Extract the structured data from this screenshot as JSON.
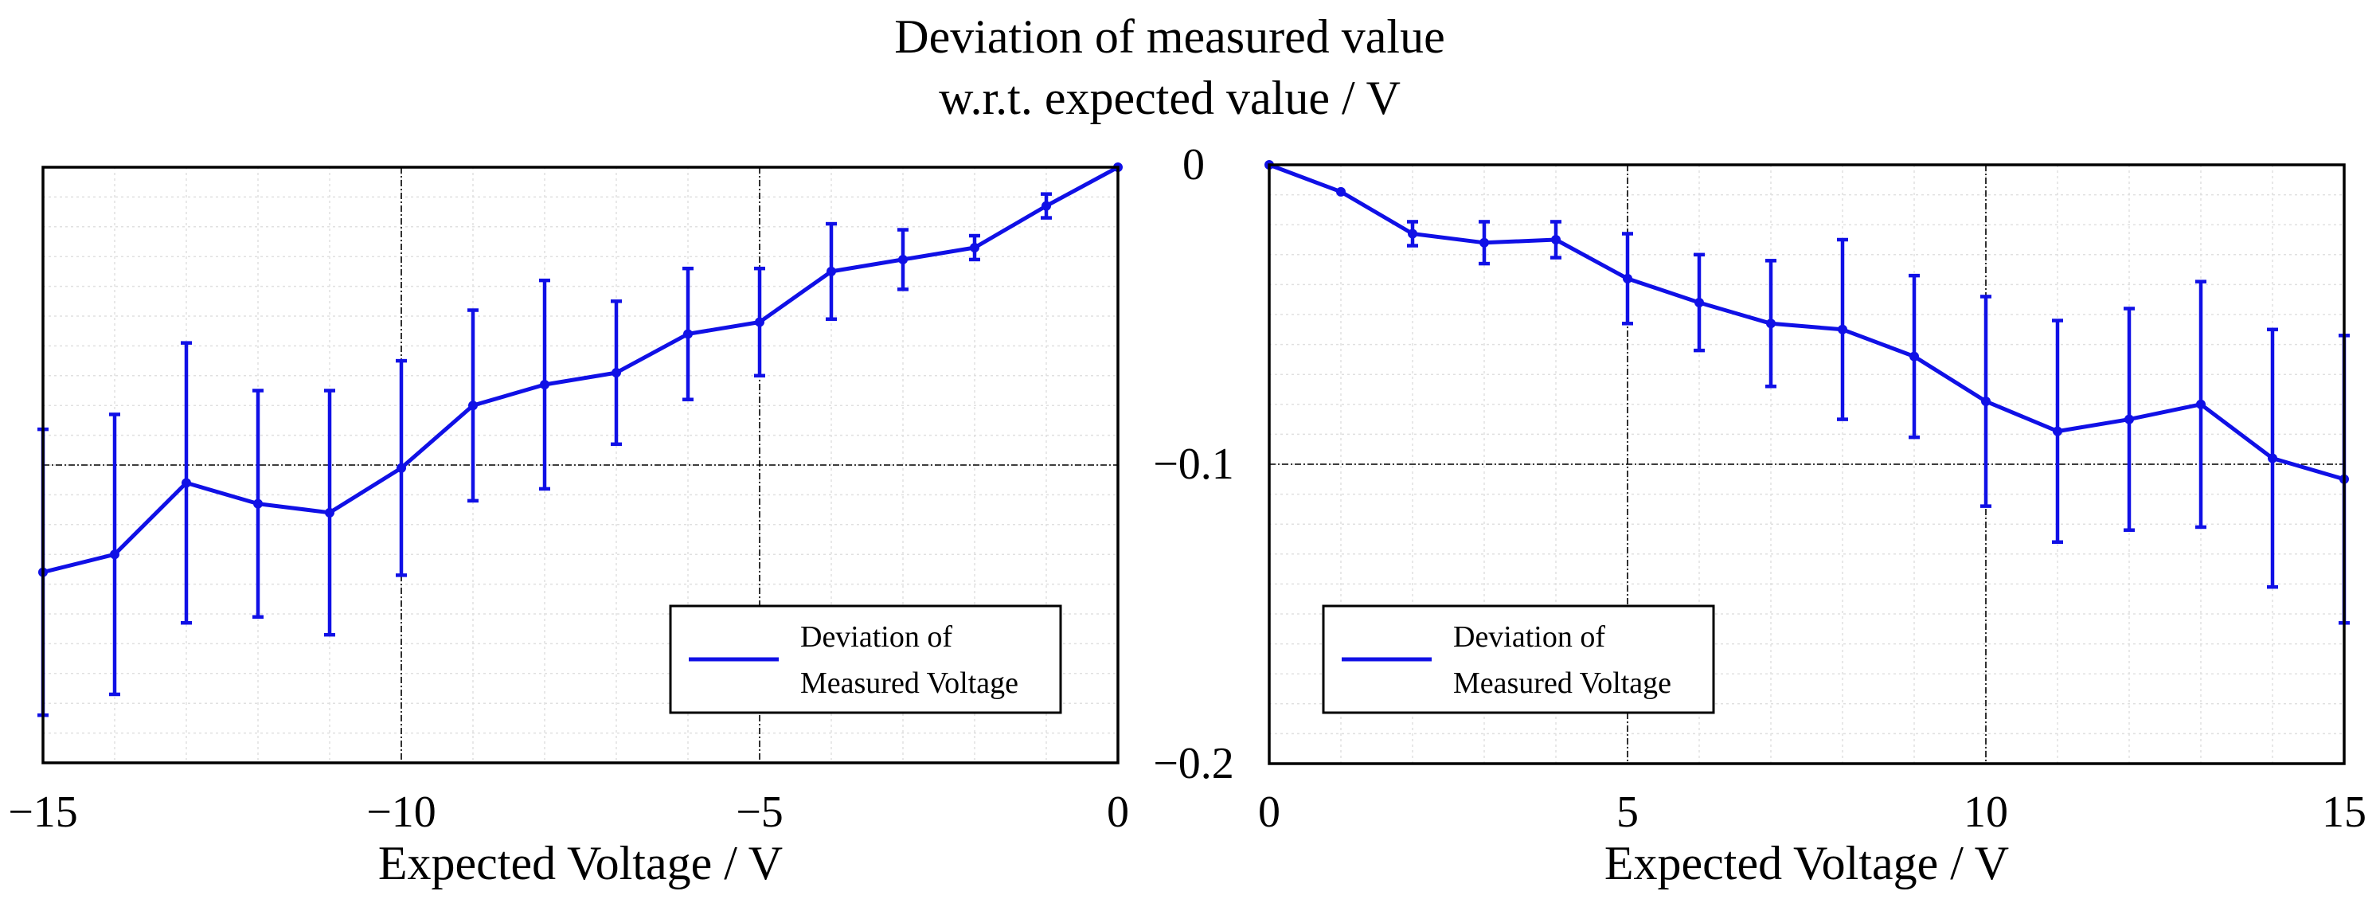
{
  "chart_data": [
    {
      "type": "line",
      "panel": "left",
      "title_line1": "Deviation of measured value",
      "title_line2": "w.r.t. expected value / V",
      "xlabel": "Expected Voltage / V",
      "ylabel": "",
      "xlim": [
        -15,
        0
      ],
      "ylim": [
        -0.2,
        0
      ],
      "x_ticks": [
        -15,
        -10,
        -5,
        0
      ],
      "x_tick_labels": [
        "−15",
        "−10",
        "−5",
        "0"
      ],
      "grid": true,
      "legend": {
        "placement": "bottom-right",
        "entry_line1": "Deviation of",
        "entry_line2": "Measured Voltage"
      },
      "series": [
        {
          "name": "Deviation of Measured Voltage",
          "color": "#1010e6",
          "x": [
            -15,
            -14,
            -13,
            -12,
            -11,
            -10,
            -9,
            -8,
            -7,
            -6,
            -5,
            -4,
            -3,
            -2,
            -1,
            0
          ],
          "y": [
            -0.136,
            -0.13,
            -0.106,
            -0.113,
            -0.116,
            -0.101,
            -0.08,
            -0.073,
            -0.069,
            -0.056,
            -0.052,
            -0.035,
            -0.031,
            -0.027,
            -0.013,
            0.0
          ],
          "err": [
            0.048,
            0.047,
            0.047,
            0.038,
            0.041,
            0.036,
            0.032,
            0.035,
            0.024,
            0.022,
            0.018,
            0.016,
            0.01,
            0.004,
            0.004,
            0.0
          ]
        }
      ]
    },
    {
      "type": "line",
      "panel": "right",
      "xlabel": "Expected Voltage / V",
      "ylabel": "",
      "xlim": [
        0,
        15
      ],
      "ylim": [
        -0.2,
        0
      ],
      "x_ticks": [
        0,
        5,
        10,
        15
      ],
      "x_tick_labels": [
        "0",
        "5",
        "10",
        "15"
      ],
      "y_ticks": [
        0,
        -0.1,
        -0.2
      ],
      "y_tick_labels": [
        "0",
        "−0.1",
        "−0.2"
      ],
      "grid": true,
      "legend": {
        "placement": "bottom-left",
        "entry_line1": "Deviation of",
        "entry_line2": "Measured Voltage"
      },
      "series": [
        {
          "name": "Deviation of Measured Voltage",
          "color": "#1010e6",
          "x": [
            0,
            1,
            2,
            3,
            4,
            5,
            6,
            7,
            8,
            9,
            10,
            11,
            12,
            13,
            14,
            15
          ],
          "y": [
            0.0,
            -0.009,
            -0.023,
            -0.026,
            -0.025,
            -0.038,
            -0.046,
            -0.053,
            -0.055,
            -0.064,
            -0.079,
            -0.089,
            -0.085,
            -0.08,
            -0.098,
            -0.105
          ],
          "err": [
            0.0,
            0.0,
            0.004,
            0.007,
            0.006,
            0.015,
            0.016,
            0.021,
            0.03,
            0.027,
            0.035,
            0.037,
            0.037,
            0.041,
            0.043,
            0.048
          ]
        }
      ]
    }
  ]
}
